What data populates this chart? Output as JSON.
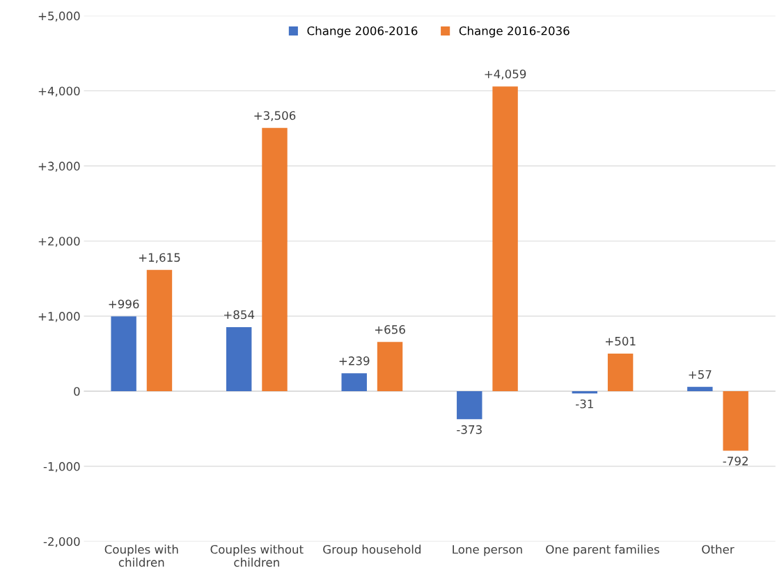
{
  "chart_data": {
    "type": "bar",
    "categories": [
      "Couples with\nchildren",
      "Couples without\nchildren",
      "Group household",
      "Lone person",
      "One parent families",
      "Other"
    ],
    "series": [
      {
        "name": "Change 2006-2016",
        "color": "#4472c4",
        "values": [
          996,
          854,
          239,
          -373,
          -31,
          57
        ],
        "value_labels": [
          "+996",
          "+854",
          "+239",
          "-373",
          "-31",
          "+57"
        ]
      },
      {
        "name": "Change 2016-2036",
        "color": "#ed7d31",
        "values": [
          1615,
          3506,
          656,
          4059,
          501,
          -792
        ],
        "value_labels": [
          "+1,615",
          "+3,506",
          "+656",
          "+4,059",
          "+501",
          "-792"
        ]
      }
    ],
    "ylim": [
      -2000,
      5000
    ],
    "yticks": [
      {
        "value": -2000,
        "label": "-2,000"
      },
      {
        "value": -1000,
        "label": "-1,000"
      },
      {
        "value": 0,
        "label": "0"
      },
      {
        "value": 1000,
        "label": "+1,000"
      },
      {
        "value": 2000,
        "label": "+2,000"
      },
      {
        "value": 3000,
        "label": "+3,000"
      },
      {
        "value": 4000,
        "label": "+4,000"
      },
      {
        "value": 5000,
        "label": "+5,000"
      }
    ],
    "grid": "y",
    "legend": "top"
  }
}
